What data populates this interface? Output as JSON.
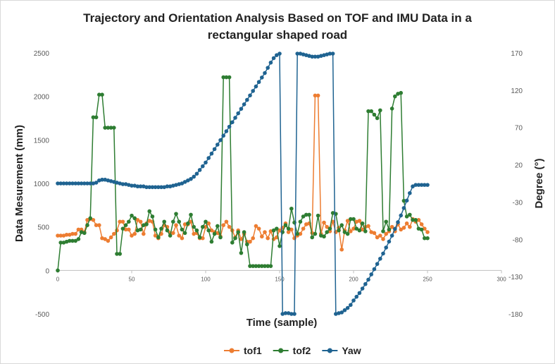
{
  "chart_data": {
    "type": "line",
    "title": "Trajectory and Orientation Analysis Based on TOF and IMU Data in a rectangular shaped road",
    "x_label": "Time (sample)",
    "y_label": "Data Mesurement (mm)",
    "y2_label": "Degree (°)",
    "xlim": [
      0,
      300
    ],
    "xticks": [
      0,
      50,
      100,
      150,
      200,
      250,
      300
    ],
    "ylim": [
      -500,
      2500
    ],
    "yticks": [
      -500,
      0,
      500,
      1000,
      1500,
      2000,
      2500
    ],
    "y2lim": [
      -180,
      170
    ],
    "y2ticks": [
      -180,
      -130,
      -80,
      -30,
      20,
      70,
      120,
      170
    ],
    "legend": "bottom",
    "x": [
      0,
      2,
      4,
      6,
      8,
      10,
      12,
      14,
      16,
      18,
      20,
      22,
      24,
      26,
      28,
      30,
      32,
      34,
      36,
      38,
      40,
      42,
      44,
      46,
      48,
      50,
      52,
      54,
      56,
      58,
      60,
      62,
      64,
      66,
      68,
      70,
      72,
      74,
      76,
      78,
      80,
      82,
      84,
      86,
      88,
      90,
      92,
      94,
      96,
      98,
      100,
      102,
      104,
      106,
      108,
      110,
      112,
      114,
      116,
      118,
      120,
      122,
      124,
      126,
      128,
      130,
      132,
      134,
      136,
      138,
      140,
      142,
      144,
      146,
      148,
      150,
      152,
      154,
      156,
      158,
      160,
      162,
      164,
      166,
      168,
      170,
      172,
      174,
      176,
      178,
      180,
      182,
      184,
      186,
      188,
      190,
      192,
      194,
      196,
      198,
      200,
      202,
      204,
      206,
      208,
      210,
      212,
      214,
      216,
      218,
      220,
      222,
      224,
      226,
      228,
      230,
      232,
      234,
      236,
      238,
      240,
      242,
      244,
      246,
      248,
      250
    ],
    "series": [
      {
        "name": "tof1",
        "color": "#ed7d31",
        "values": [
          400,
          400,
          400,
          410,
          410,
          420,
          420,
          470,
          470,
          440,
          580,
          590,
          580,
          520,
          520,
          370,
          360,
          340,
          380,
          420,
          460,
          560,
          560,
          470,
          470,
          400,
          420,
          580,
          560,
          420,
          540,
          570,
          560,
          400,
          370,
          420,
          520,
          500,
          430,
          430,
          520,
          400,
          370,
          530,
          530,
          560,
          420,
          430,
          370,
          370,
          500,
          540,
          460,
          440,
          430,
          390,
          520,
          560,
          500,
          460,
          380,
          460,
          360,
          420,
          330,
          330,
          370,
          510,
          480,
          390,
          440,
          370,
          450,
          360,
          380,
          460,
          490,
          540,
          440,
          470,
          370,
          400,
          420,
          480,
          530,
          540,
          430,
          2010,
          2010,
          420,
          550,
          500,
          450,
          560,
          440,
          490,
          240,
          460,
          570,
          450,
          480,
          560,
          570,
          470,
          500,
          510,
          440,
          430,
          380,
          400,
          360,
          420,
          450,
          500,
          450,
          530,
          470,
          490,
          540,
          500,
          590,
          560,
          580,
          530,
          480,
          440
        ]
      },
      {
        "name": "tof2",
        "color": "#2e7d32",
        "values": [
          0,
          320,
          320,
          330,
          340,
          340,
          340,
          360,
          440,
          430,
          520,
          600,
          1760,
          1760,
          2020,
          2020,
          1640,
          1640,
          1640,
          1640,
          190,
          190,
          480,
          520,
          560,
          630,
          600,
          460,
          470,
          520,
          530,
          680,
          620,
          470,
          380,
          480,
          560,
          460,
          400,
          560,
          650,
          560,
          470,
          430,
          540,
          640,
          500,
          460,
          380,
          500,
          560,
          460,
          330,
          420,
          510,
          380,
          2220,
          2220,
          2220,
          320,
          370,
          440,
          200,
          440,
          300,
          50,
          50,
          50,
          50,
          50,
          50,
          50,
          50,
          460,
          480,
          280,
          440,
          520,
          480,
          710,
          550,
          420,
          560,
          620,
          640,
          640,
          380,
          420,
          630,
          400,
          390,
          440,
          480,
          660,
          650,
          460,
          520,
          440,
          420,
          590,
          590,
          480,
          460,
          540,
          450,
          1830,
          1830,
          1790,
          1750,
          1840,
          450,
          560,
          470,
          1860,
          2000,
          2030,
          2040,
          800,
          620,
          640,
          580,
          580,
          480,
          470,
          370,
          370
        ]
      },
      {
        "name": "Yaw",
        "color": "#1f6391",
        "axis": "y2",
        "values": [
          -5,
          -5,
          -5,
          -5,
          -5,
          -5,
          -5,
          -5,
          -5,
          -5,
          -5,
          -5,
          -5,
          -4,
          -1,
          0,
          0,
          -1,
          -2,
          -3,
          -4,
          -5,
          -6,
          -6,
          -7,
          -8,
          -8,
          -9,
          -9,
          -9,
          -10,
          -10,
          -10,
          -10,
          -10,
          -10,
          -10,
          -9,
          -9,
          -8,
          -7,
          -6,
          -5,
          -3,
          -1,
          1,
          4,
          8,
          13,
          18,
          23,
          29,
          35,
          41,
          47,
          53,
          59,
          65,
          71,
          77,
          83,
          89,
          95,
          101,
          107,
          113,
          119,
          125,
          131,
          137,
          143,
          150,
          157,
          163,
          167,
          169,
          -180,
          -179,
          -179,
          -180,
          -180,
          169,
          169,
          168,
          167,
          166,
          165,
          165,
          165,
          166,
          167,
          168,
          169,
          169,
          -180,
          -179,
          -178,
          -175,
          -172,
          -168,
          -162,
          -157,
          -152,
          -146,
          -140,
          -134,
          -127,
          -120,
          -113,
          -106,
          -99,
          -91,
          -83,
          -75,
          -66,
          -57,
          -48,
          -38,
          -28,
          -18,
          -9,
          -7,
          -7,
          -7,
          -7,
          -7
        ]
      }
    ]
  }
}
